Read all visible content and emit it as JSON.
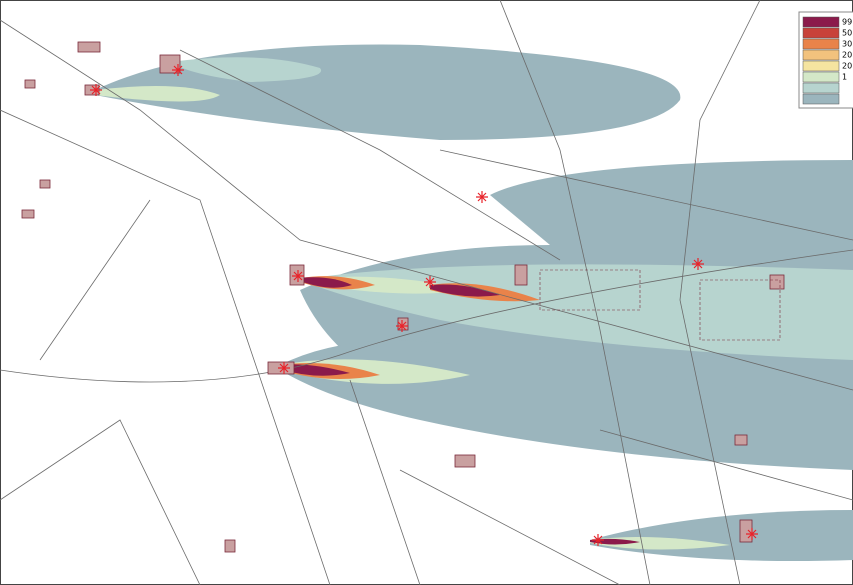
{
  "legend": {
    "items": [
      {
        "label": "99",
        "color": "#8b1a4b"
      },
      {
        "label": "50",
        "color": "#c8423a"
      },
      {
        "label": "30",
        "color": "#e9834a"
      },
      {
        "label": "20",
        "color": "#f2c27d"
      },
      {
        "label": "20",
        "color": "#f5e4a0"
      },
      {
        "label": "1",
        "color": "#d4e8c8"
      }
    ]
  }
}
